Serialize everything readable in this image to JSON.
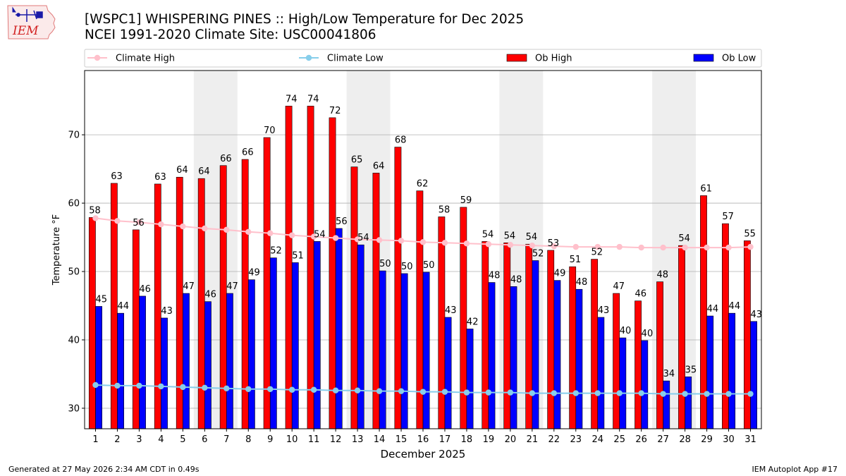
{
  "title_line1": "[WSPC1] WHISPERING PINES :: High/Low Temperature for Dec 2025",
  "title_line2": "NCEI 1991-2020 Climate Site: USC00041806",
  "logo_text": "IEM",
  "footer_left": "Generated at 27 May 2026 2:34 AM CDT in 0.49s",
  "footer_right": "IEM Autoplot App #17",
  "colors": {
    "ob_high": "#ff0000",
    "ob_low": "#0000ff",
    "climate_high": "#ffc0cb",
    "climate_low": "#87ceeb",
    "weekend_shade": "#eeeeee"
  },
  "chart_data": {
    "type": "bar",
    "xlabel": "December 2025",
    "ylabel": "Temperature °F",
    "ylim": [
      27,
      79.4
    ],
    "yticks": [
      30,
      40,
      50,
      60,
      70
    ],
    "grid": true,
    "legend_position": "top",
    "legend": [
      "Climate High",
      "Climate Low",
      "Ob High",
      "Ob Low"
    ],
    "x": [
      1,
      2,
      3,
      4,
      5,
      6,
      7,
      8,
      9,
      10,
      11,
      12,
      13,
      14,
      15,
      16,
      17,
      18,
      19,
      20,
      21,
      22,
      23,
      24,
      25,
      26,
      27,
      28,
      29,
      30,
      31
    ],
    "shaded_days": [
      [
        6,
        7
      ],
      [
        13,
        14
      ],
      [
        20,
        21
      ],
      [
        27,
        28
      ]
    ],
    "series": [
      {
        "name": "Ob High",
        "kind": "bar",
        "values": [
          58,
          63,
          56,
          63,
          64,
          64,
          66,
          66,
          70,
          74,
          74,
          72,
          65,
          64,
          68,
          62,
          58,
          59,
          54,
          54,
          54,
          53,
          51,
          52,
          47,
          46,
          48,
          54,
          61,
          57,
          55
        ],
        "plotted": [
          57.9,
          62.9,
          56.1,
          62.8,
          63.8,
          63.6,
          65.5,
          66.4,
          69.6,
          74.2,
          74.2,
          72.5,
          65.3,
          64.4,
          68.2,
          61.8,
          58.0,
          59.4,
          54.4,
          54.2,
          54.0,
          53.1,
          50.7,
          51.8,
          46.8,
          45.7,
          48.5,
          53.8,
          61.1,
          57.0,
          54.5
        ]
      },
      {
        "name": "Ob Low",
        "kind": "bar",
        "values": [
          45,
          44,
          46,
          43,
          47,
          46,
          47,
          49,
          52,
          51,
          54,
          56,
          54,
          50,
          50,
          50,
          43,
          42,
          48,
          48,
          52,
          49,
          48,
          43,
          40,
          40,
          34,
          35,
          44,
          44,
          43
        ],
        "plotted": [
          44.9,
          43.9,
          46.4,
          43.2,
          46.8,
          45.6,
          46.8,
          48.8,
          52.0,
          51.3,
          54.4,
          56.3,
          53.9,
          50.1,
          49.7,
          49.9,
          43.3,
          41.6,
          48.4,
          47.8,
          51.6,
          48.7,
          47.4,
          43.3,
          40.3,
          39.9,
          34.0,
          34.6,
          43.5,
          43.9,
          42.7
        ]
      },
      {
        "name": "Climate High",
        "kind": "line",
        "values": [
          57.8,
          57.4,
          57.2,
          56.9,
          56.6,
          56.3,
          56.1,
          55.8,
          55.6,
          55.3,
          55.1,
          54.9,
          54.7,
          54.6,
          54.5,
          54.3,
          54.2,
          54.1,
          54.0,
          53.9,
          53.8,
          53.7,
          53.6,
          53.6,
          53.6,
          53.5,
          53.5,
          53.5,
          53.5,
          53.5,
          53.6
        ]
      },
      {
        "name": "Climate Low",
        "kind": "line",
        "values": [
          33.4,
          33.3,
          33.3,
          33.2,
          33.1,
          33.0,
          32.9,
          32.8,
          32.8,
          32.7,
          32.7,
          32.6,
          32.6,
          32.5,
          32.5,
          32.4,
          32.4,
          32.3,
          32.3,
          32.3,
          32.2,
          32.2,
          32.2,
          32.2,
          32.2,
          32.2,
          32.1,
          32.1,
          32.1,
          32.1,
          32.1
        ]
      }
    ]
  }
}
